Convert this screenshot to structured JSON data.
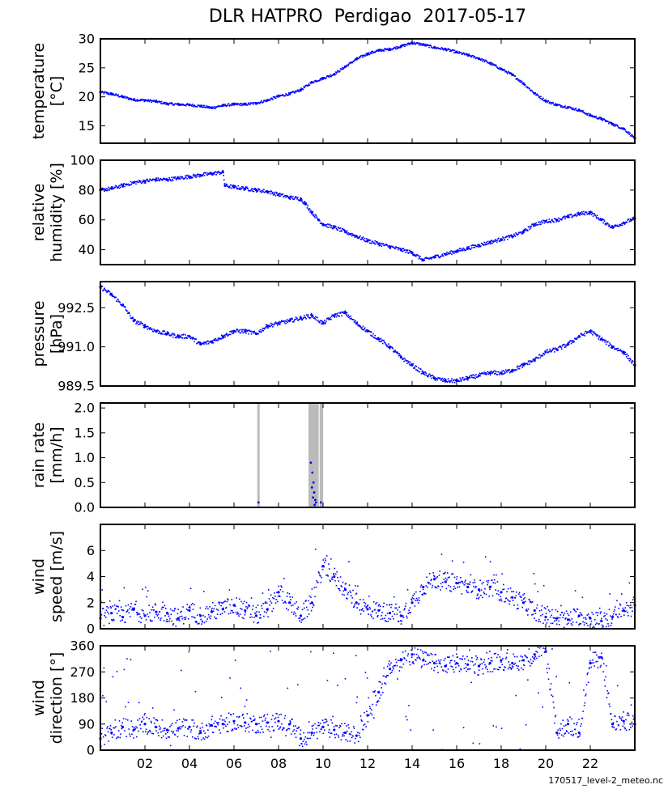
{
  "title": "DLR HATPRO  Perdigao  2017-05-17",
  "footer": "170517_level-2_meteo.nc",
  "colors": {
    "series": "#0000ff",
    "rain_flag": "#bbbbbb",
    "axis": "#000000"
  },
  "chart_data": [
    {
      "type": "line",
      "name": "temperature",
      "ylabel": [
        "temperature",
        "[°C]"
      ],
      "ylim": [
        12,
        30
      ],
      "yticks": [
        15,
        20,
        25,
        30
      ],
      "ytick_labels": [
        "15",
        "20",
        "25",
        "30"
      ],
      "xlim": [
        0,
        24
      ],
      "x": [
        0,
        0.5,
        1,
        1.5,
        2,
        2.5,
        3,
        3.5,
        4,
        4.5,
        5,
        5.5,
        6,
        6.5,
        7,
        7.5,
        8,
        8.5,
        9,
        9.5,
        10,
        10.5,
        11,
        11.5,
        12,
        12.5,
        13,
        13.5,
        14,
        14.5,
        15,
        15.5,
        16,
        16.5,
        17,
        17.5,
        18,
        18.5,
        19,
        19.5,
        20,
        20.5,
        21,
        21.5,
        22,
        22.5,
        23,
        23.5,
        24
      ],
      "y": [
        20.8,
        20.5,
        20.0,
        19.5,
        19.4,
        19.2,
        18.8,
        18.7,
        18.6,
        18.4,
        18.1,
        18.5,
        18.7,
        18.7,
        18.9,
        19.4,
        20.1,
        20.5,
        21.2,
        22.5,
        23.2,
        23.9,
        25.2,
        26.5,
        27.4,
        28.0,
        28.2,
        28.7,
        29.3,
        29.0,
        28.5,
        28.2,
        27.7,
        27.2,
        26.6,
        25.8,
        24.8,
        23.8,
        22.3,
        20.6,
        19.3,
        18.6,
        18.2,
        17.7,
        16.8,
        16.2,
        15.3,
        14.5,
        12.9
      ]
    },
    {
      "type": "line",
      "name": "relative_humidity",
      "ylabel": [
        "relative",
        "humidity [%]"
      ],
      "ylim": [
        30,
        100
      ],
      "yticks": [
        40,
        60,
        80,
        100
      ],
      "ytick_labels": [
        "40",
        "60",
        "80",
        "100"
      ],
      "xlim": [
        0,
        24
      ],
      "x": [
        0,
        0.5,
        1,
        1.5,
        2,
        2.5,
        3,
        3.5,
        4,
        4.5,
        5,
        5.5,
        5.6,
        6,
        6.5,
        7,
        7.5,
        8,
        8.5,
        9,
        9.2,
        9.5,
        9.8,
        10,
        10.5,
        11,
        11.5,
        12,
        12.5,
        13,
        13.5,
        14,
        14.5,
        15,
        15.5,
        16,
        16.5,
        17,
        17.5,
        18,
        18.5,
        19,
        19.5,
        20,
        20.5,
        21,
        21.5,
        22,
        22.5,
        23,
        23.5,
        24
      ],
      "y": [
        80,
        81,
        83,
        85,
        86,
        87,
        87,
        88,
        89,
        90,
        91,
        92,
        83,
        82,
        81,
        80,
        79,
        77,
        75,
        74,
        71,
        65,
        60,
        57,
        55,
        52,
        49,
        46,
        44,
        42,
        40,
        38,
        33,
        35,
        37,
        39,
        41,
        43,
        45,
        47,
        49,
        52,
        57,
        59,
        60,
        62,
        64,
        65,
        60,
        55,
        58,
        61
      ]
    },
    {
      "type": "line",
      "name": "pressure",
      "ylabel": [
        "pressure",
        "[hPa]"
      ],
      "ylim": [
        989.5,
        993.5
      ],
      "yticks": [
        989.5,
        991.0,
        992.5
      ],
      "ytick_labels": [
        "989.5",
        "991.0",
        "992.5"
      ],
      "xlim": [
        0,
        24
      ],
      "x": [
        0,
        0.5,
        1,
        1.5,
        2,
        2.5,
        3,
        3.5,
        4,
        4.5,
        5,
        5.5,
        6,
        6.5,
        7,
        7.5,
        8,
        8.5,
        9,
        9.5,
        10,
        10.5,
        11,
        11.5,
        12,
        12.5,
        13,
        13.5,
        14,
        14.5,
        15,
        15.5,
        16,
        16.5,
        17,
        17.5,
        18,
        18.5,
        19,
        19.5,
        20,
        20.5,
        21,
        21.5,
        22,
        22.5,
        23,
        23.5,
        24
      ],
      "y": [
        993.3,
        993.0,
        992.6,
        992.0,
        991.8,
        991.6,
        991.5,
        991.4,
        991.4,
        991.1,
        991.2,
        991.4,
        991.6,
        991.6,
        991.5,
        991.8,
        991.9,
        992.0,
        992.1,
        992.2,
        991.9,
        992.2,
        992.3,
        991.9,
        991.6,
        991.3,
        991.0,
        990.6,
        990.3,
        990.0,
        989.8,
        989.7,
        989.7,
        989.8,
        989.9,
        990.0,
        990.0,
        990.1,
        990.3,
        990.5,
        990.8,
        990.9,
        991.1,
        991.4,
        991.6,
        991.3,
        991.0,
        990.8,
        990.3
      ]
    },
    {
      "type": "scatter",
      "name": "rain_rate",
      "ylabel": [
        "rain rate",
        "[mm/h]"
      ],
      "ylim": [
        0,
        2.1
      ],
      "yticks": [
        0,
        0.5,
        1.0,
        1.5,
        2.0
      ],
      "ytick_labels": [
        "0.0",
        "0.5",
        "1.0",
        "1.5",
        "2.0"
      ],
      "xlim": [
        0,
        24
      ],
      "rain_flag_times": [
        7.1,
        9.4,
        9.45,
        9.5,
        9.55,
        9.6,
        9.65,
        9.7,
        9.75,
        9.9,
        9.95
      ],
      "x": [
        7.1,
        9.45,
        9.5,
        9.52,
        9.55,
        9.57,
        9.6,
        9.62,
        9.65,
        9.68,
        9.9
      ],
      "y": [
        0.1,
        0.9,
        0.4,
        0.7,
        0.2,
        0.5,
        0.3,
        0.05,
        0.15,
        0.1,
        0.1
      ]
    },
    {
      "type": "scatter",
      "name": "wind_speed",
      "ylabel": [
        "wind",
        "speed [m/s]"
      ],
      "ylim": [
        0,
        8
      ],
      "yticks": [
        0,
        2,
        4,
        6
      ],
      "ytick_labels": [
        "0",
        "2",
        "4",
        "6"
      ],
      "xlim": [
        0,
        24
      ],
      "x": [
        0,
        0.5,
        1,
        1.5,
        2,
        2.5,
        3,
        3.5,
        4,
        4.5,
        5,
        5.5,
        6,
        6.5,
        7,
        7.5,
        8,
        8.5,
        9,
        9.5,
        10,
        10.5,
        11,
        11.5,
        12,
        12.5,
        13,
        13.5,
        14,
        14.5,
        15,
        15.5,
        16,
        16.5,
        17,
        17.5,
        18,
        18.5,
        19,
        19.5,
        20,
        20.5,
        21,
        21.5,
        22,
        22.5,
        23,
        23.5,
        24
      ],
      "y": [
        0.8,
        1.2,
        0.9,
        1.5,
        1.0,
        1.3,
        1.2,
        0.8,
        1.4,
        1.0,
        1.3,
        1.5,
        1.8,
        1.4,
        1.0,
        1.5,
        2.8,
        2.0,
        1.0,
        2.0,
        4.8,
        4.0,
        3.0,
        2.0,
        1.5,
        1.4,
        1.2,
        1.0,
        2.0,
        3.2,
        3.8,
        3.6,
        3.5,
        3.2,
        3.0,
        3.2,
        2.8,
        2.4,
        2.0,
        1.4,
        0.9,
        0.8,
        0.7,
        1.0,
        0.8,
        0.6,
        0.9,
        1.4,
        1.8
      ]
    },
    {
      "type": "scatter",
      "name": "wind_direction",
      "ylabel": [
        "wind",
        "direction [°]"
      ],
      "ylim": [
        0,
        360
      ],
      "yticks": [
        0,
        90,
        180,
        270,
        360
      ],
      "ytick_labels": [
        "0",
        "90",
        "180",
        "270",
        "360"
      ],
      "xlim": [
        0,
        24
      ],
      "xticks": [
        2,
        4,
        6,
        8,
        10,
        12,
        14,
        16,
        18,
        20,
        22
      ],
      "xtick_labels": [
        "02",
        "04",
        "06",
        "08",
        "10",
        "12",
        "14",
        "16",
        "18",
        "20",
        "22"
      ],
      "x": [
        0,
        0.5,
        1,
        1.5,
        2,
        2.5,
        3,
        3.5,
        4,
        4.5,
        5,
        5.5,
        6,
        6.5,
        7,
        7.5,
        8,
        8.5,
        9,
        9.5,
        10,
        10.5,
        11,
        11.5,
        12,
        12.5,
        13,
        13.5,
        14,
        14.5,
        15,
        15.5,
        16,
        16.5,
        17,
        17.5,
        18,
        18.5,
        19,
        19.5,
        20,
        20.5,
        21,
        21.5,
        22,
        22.5,
        23,
        23.5,
        24
      ],
      "y": [
        40,
        60,
        80,
        70,
        90,
        80,
        70,
        75,
        80,
        60,
        85,
        90,
        100,
        95,
        90,
        95,
        100,
        90,
        40,
        60,
        80,
        70,
        60,
        50,
        120,
        200,
        280,
        310,
        330,
        310,
        300,
        290,
        300,
        295,
        290,
        300,
        310,
        300,
        310,
        330,
        340,
        60,
        90,
        60,
        300,
        320,
        90,
        100,
        90
      ]
    }
  ]
}
